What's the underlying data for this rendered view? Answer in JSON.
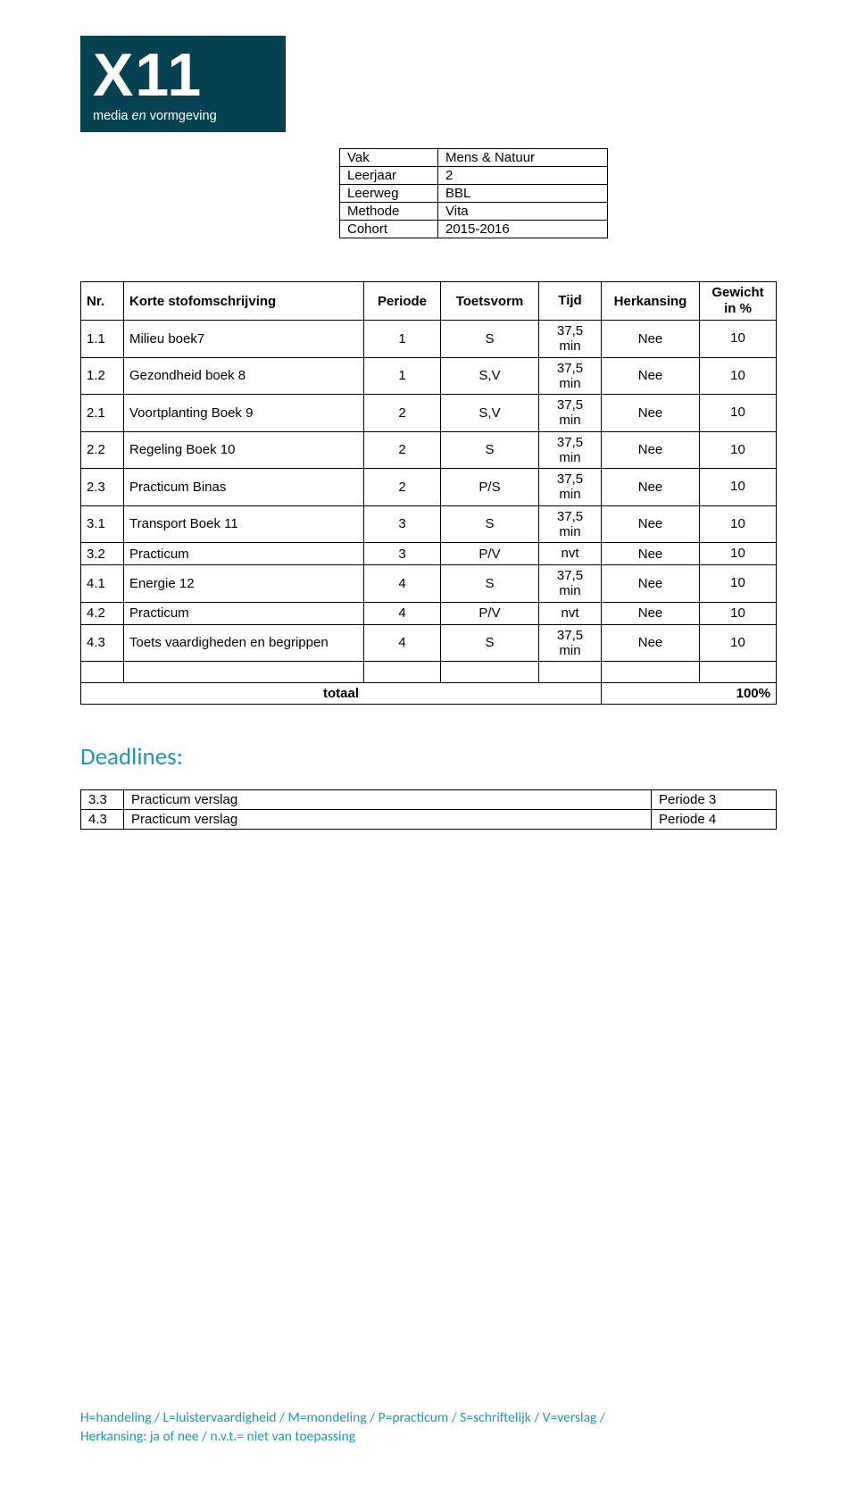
{
  "logo": {
    "main": "X11",
    "sub_prefix": "media ",
    "sub_em": "en",
    "sub_suffix": " vormgeving",
    "bg_color": "#054352",
    "text_color": "#ffffff"
  },
  "meta": {
    "rows": [
      {
        "label": "Vak",
        "value": "Mens & Natuur"
      },
      {
        "label": "Leerjaar",
        "value": "2"
      },
      {
        "label": "Leerweg",
        "value": "BBL"
      },
      {
        "label": "Methode",
        "value": "Vita"
      },
      {
        "label": "Cohort",
        "value": "2015-2016"
      }
    ]
  },
  "table": {
    "headers": {
      "nr": "Nr.",
      "desc": "Korte stofomschrijving",
      "periode": "Periode",
      "toetsvorm": "Toetsvorm",
      "tijd": "Tijd",
      "herk": "Herkansing",
      "gew_line1": "Gewicht",
      "gew_line2": "in %"
    },
    "tijd_line1": "37,5",
    "tijd_line2": "min",
    "rows": [
      {
        "nr": "1.1",
        "desc": "Milieu boek7",
        "periode": "1",
        "toetsvorm": "S",
        "tijd": "37,5\nmin",
        "herk": "Nee",
        "gew": "10"
      },
      {
        "nr": "1.2",
        "desc": "Gezondheid boek 8",
        "periode": "1",
        "toetsvorm": "S,V",
        "tijd": "37,5\nmin",
        "herk": "Nee",
        "gew": "10"
      },
      {
        "nr": "2.1",
        "desc": "Voortplanting Boek 9",
        "periode": "2",
        "toetsvorm": "S,V",
        "tijd": "37,5\nmin",
        "herk": "Nee",
        "gew": "10"
      },
      {
        "nr": "2.2",
        "desc": "Regeling Boek 10",
        "periode": "2",
        "toetsvorm": "S",
        "tijd": "37,5\nmin",
        "herk": "Nee",
        "gew": "10"
      },
      {
        "nr": "2.3",
        "desc": "Practicum Binas",
        "periode": "2",
        "toetsvorm": "P/S",
        "tijd": "37,5\nmin",
        "herk": "Nee",
        "gew": "10"
      },
      {
        "nr": "3.1",
        "desc": "Transport Boek 11",
        "periode": "3",
        "toetsvorm": "S",
        "tijd": "37,5\nmin",
        "herk": "Nee",
        "gew": "10"
      },
      {
        "nr": "3.2",
        "desc": "Practicum",
        "periode": "3",
        "toetsvorm": "P/V",
        "tijd": "nvt",
        "herk": "Nee",
        "gew": "10"
      },
      {
        "nr": "4.1",
        "desc": "Energie 12",
        "periode": "4",
        "toetsvorm": "S",
        "tijd": "37,5\nmin",
        "herk": "Nee",
        "gew": "10"
      },
      {
        "nr": "4.2",
        "desc": "Practicum",
        "periode": "4",
        "toetsvorm": "P/V",
        "tijd": "nvt",
        "herk": "Nee",
        "gew": "10"
      },
      {
        "nr": "4.3",
        "desc": "Toets vaardigheden en begrippen",
        "periode": "4",
        "toetsvorm": "S",
        "tijd": "37,5\nmin",
        "herk": "Nee",
        "gew": "10"
      }
    ],
    "total_label": "totaal",
    "total_value": "100%"
  },
  "deadlines": {
    "heading": "Deadlines:",
    "heading_color": "#1f97b2",
    "rows": [
      {
        "nr": "3.3",
        "desc": "Practicum verslag",
        "per": "Periode 3"
      },
      {
        "nr": "4.3",
        "desc": "Practicum verslag",
        "per": "Periode 4"
      }
    ]
  },
  "footer": {
    "line1": "H=handeling / L=luistervaardigheid / M=mondeling / P=practicum / S=schriftelijk / V=verslag /",
    "line2": "Herkansing: ja of nee / n.v.t.= niet van toepassing",
    "color": "#1f97b2"
  }
}
